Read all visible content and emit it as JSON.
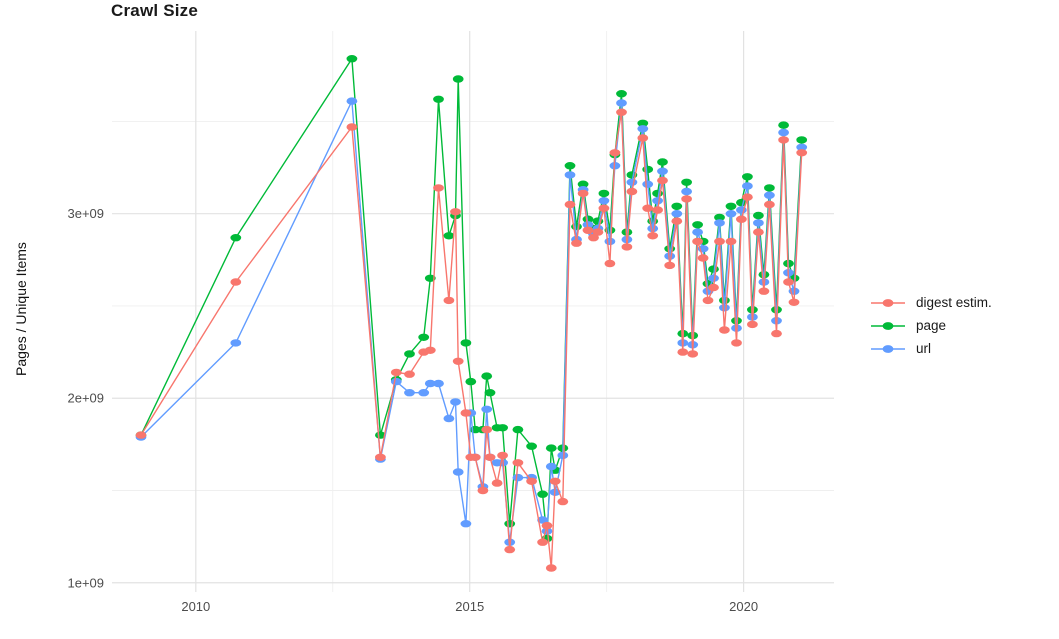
{
  "chart_data": {
    "type": "line",
    "title": "Crawl Size",
    "xlabel": "",
    "ylabel": "Pages / Unique Items",
    "legend_position": "right",
    "grid": true,
    "xlim": [
      2008.47,
      2021.65
    ],
    "ylim_e9": [
      0.95,
      3.99
    ],
    "y_scale_note": "series y values are in billions (1e9)",
    "x_ticks": {
      "values": [
        2010,
        2015,
        2020
      ],
      "labels": [
        "2010",
        "2015",
        "2020"
      ],
      "minor": [
        2012.5,
        2017.5
      ]
    },
    "y_ticks": {
      "values_e9": [
        1,
        2,
        3
      ],
      "labels": [
        "1e+09",
        "2e+09",
        "3e+09"
      ],
      "minor_e9": [
        1.5,
        2.5,
        3.5
      ]
    },
    "theme": {
      "background": "#FFFFFF",
      "grid_major_color": "#E2E2E2",
      "grid_minor_color": "#EFEFEF",
      "tick_label_color": "#4D4D4D",
      "text_color": "#1A1A1A"
    },
    "x_shared_years": [
      2009.0,
      2010.73,
      2012.85,
      2013.37,
      2013.66,
      2013.9,
      2014.16,
      2014.28,
      2014.43,
      2014.62,
      2014.74,
      2014.79,
      2014.93,
      2015.02,
      2015.1,
      2015.24,
      2015.31,
      2015.37,
      2015.5,
      2015.6,
      2015.73,
      2015.88,
      2016.13,
      2016.33,
      2016.41,
      2016.49,
      2016.56,
      2016.7,
      2016.83,
      2016.95,
      2017.07,
      2017.16,
      2017.26,
      2017.34,
      2017.45,
      2017.56,
      2017.65,
      2017.77,
      2017.87,
      2017.96,
      2018.16,
      2018.25,
      2018.34,
      2018.43,
      2018.52,
      2018.65,
      2018.78,
      2018.89,
      2018.96,
      2019.07,
      2019.16,
      2019.26,
      2019.35,
      2019.45,
      2019.56,
      2019.65,
      2019.77,
      2019.87,
      2019.96,
      2020.07,
      2020.16,
      2020.27,
      2020.37,
      2020.47,
      2020.6,
      2020.73,
      2020.82,
      2020.92,
      2021.06
    ],
    "series": [
      {
        "name": "digest estim.",
        "key": "digest-estim",
        "color": "#F8766D",
        "x": [
          2009.0,
          2010.73,
          2012.85,
          2013.37,
          2013.66,
          2013.9,
          2014.16,
          2014.28,
          2014.43,
          2014.62,
          2014.74,
          2014.79,
          2014.93,
          2015.02,
          2015.1,
          2015.24,
          2015.31,
          2015.37,
          2015.5,
          2015.6,
          2015.73,
          2015.88,
          2016.13,
          2016.33,
          2016.41,
          2016.49,
          2016.56,
          2016.7,
          2016.83,
          2016.95,
          2017.07,
          2017.16,
          2017.26,
          2017.34,
          2017.45,
          2017.56,
          2017.65,
          2017.77,
          2017.87,
          2017.96,
          2018.16,
          2018.25,
          2018.34,
          2018.43,
          2018.52,
          2018.65,
          2018.78,
          2018.89,
          2018.96,
          2019.07,
          2019.16,
          2019.26,
          2019.35,
          2019.45,
          2019.56,
          2019.65,
          2019.77,
          2019.87,
          2019.96,
          2020.07,
          2020.16,
          2020.27,
          2020.37,
          2020.47,
          2020.6,
          2020.73,
          2020.82,
          2020.92,
          2021.06
        ],
        "y": [
          1.8,
          2.63,
          3.47,
          1.68,
          2.14,
          2.13,
          2.25,
          2.26,
          3.14,
          2.53,
          3.01,
          2.2,
          1.92,
          1.68,
          1.68,
          1.5,
          1.83,
          1.68,
          1.54,
          1.69,
          1.18,
          1.65,
          1.55,
          1.22,
          1.31,
          1.08,
          1.55,
          1.44,
          3.05,
          2.84,
          3.11,
          2.91,
          2.87,
          2.9,
          3.03,
          2.73,
          3.33,
          3.55,
          2.82,
          3.12,
          3.41,
          3.03,
          2.88,
          3.02,
          3.18,
          2.72,
          2.96,
          2.25,
          3.08,
          2.24,
          2.85,
          2.76,
          2.53,
          2.6,
          2.85,
          2.37,
          2.85,
          2.3,
          2.97,
          3.09,
          2.4,
          2.9,
          2.58,
          3.05,
          2.35,
          3.4,
          2.63,
          2.52,
          3.33
        ]
      },
      {
        "name": "page",
        "key": "page",
        "color": "#00BA38",
        "x": [
          2009.0,
          2010.73,
          2012.85,
          2013.37,
          2013.66,
          2013.9,
          2014.16,
          2014.28,
          2014.43,
          2014.62,
          2014.74,
          2014.79,
          2014.93,
          2015.02,
          2015.1,
          2015.24,
          2015.31,
          2015.37,
          2015.5,
          2015.6,
          2015.73,
          2015.88,
          2016.13,
          2016.33,
          2016.41,
          2016.49,
          2016.56,
          2016.7,
          2016.83,
          2016.95,
          2017.07,
          2017.16,
          2017.26,
          2017.34,
          2017.45,
          2017.56,
          2017.65,
          2017.77,
          2017.87,
          2017.96,
          2018.16,
          2018.25,
          2018.34,
          2018.43,
          2018.52,
          2018.65,
          2018.78,
          2018.89,
          2018.96,
          2019.07,
          2019.16,
          2019.26,
          2019.35,
          2019.45,
          2019.56,
          2019.65,
          2019.77,
          2019.87,
          2019.96,
          2020.07,
          2020.16,
          2020.27,
          2020.37,
          2020.47,
          2020.6,
          2020.73,
          2020.82,
          2020.92,
          2021.06
        ],
        "y": [
          1.8,
          2.87,
          3.84,
          1.8,
          2.1,
          2.24,
          2.33,
          2.65,
          3.62,
          2.88,
          2.99,
          3.73,
          2.3,
          2.09,
          1.83,
          1.83,
          2.12,
          2.03,
          1.84,
          1.84,
          1.32,
          1.83,
          1.74,
          1.48,
          1.24,
          1.73,
          1.61,
          1.73,
          3.26,
          2.93,
          3.16,
          2.97,
          2.92,
          2.96,
          3.11,
          2.91,
          3.32,
          3.65,
          2.9,
          3.21,
          3.49,
          3.24,
          2.96,
          3.11,
          3.28,
          2.81,
          3.04,
          2.35,
          3.17,
          2.34,
          2.94,
          2.85,
          2.62,
          2.7,
          2.98,
          2.53,
          3.04,
          2.42,
          3.06,
          3.2,
          2.48,
          2.99,
          2.67,
          3.14,
          2.48,
          3.48,
          2.73,
          2.65,
          3.4
        ]
      },
      {
        "name": "url",
        "key": "url",
        "color": "#619CFF",
        "x": [
          2009.0,
          2010.73,
          2012.85,
          2013.37,
          2013.66,
          2013.9,
          2014.16,
          2014.28,
          2014.43,
          2014.62,
          2014.74,
          2014.79,
          2014.93,
          2015.02,
          2015.1,
          2015.24,
          2015.31,
          2015.37,
          2015.5,
          2015.6,
          2015.73,
          2015.88,
          2016.13,
          2016.33,
          2016.41,
          2016.49,
          2016.56,
          2016.7,
          2016.83,
          2016.95,
          2017.07,
          2017.16,
          2017.26,
          2017.34,
          2017.45,
          2017.56,
          2017.65,
          2017.77,
          2017.87,
          2017.96,
          2018.16,
          2018.25,
          2018.34,
          2018.43,
          2018.52,
          2018.65,
          2018.78,
          2018.89,
          2018.96,
          2019.07,
          2019.16,
          2019.26,
          2019.35,
          2019.45,
          2019.56,
          2019.65,
          2019.77,
          2019.87,
          2019.96,
          2020.07,
          2020.16,
          2020.27,
          2020.37,
          2020.47,
          2020.6,
          2020.73,
          2020.82,
          2020.92,
          2021.06
        ],
        "y": [
          1.79,
          2.3,
          3.61,
          1.67,
          2.09,
          2.03,
          2.03,
          2.08,
          2.08,
          1.89,
          1.98,
          1.6,
          1.32,
          1.92,
          1.68,
          1.52,
          1.94,
          1.68,
          1.65,
          1.65,
          1.22,
          1.57,
          1.57,
          1.34,
          1.28,
          1.63,
          1.49,
          1.69,
          3.21,
          2.86,
          3.13,
          2.94,
          2.89,
          2.92,
          3.07,
          2.85,
          3.26,
          3.6,
          2.86,
          3.17,
          3.46,
          3.16,
          2.92,
          3.07,
          3.23,
          2.77,
          3.0,
          2.3,
          3.12,
          2.29,
          2.9,
          2.81,
          2.58,
          2.65,
          2.95,
          2.49,
          3.0,
          2.38,
          3.02,
          3.15,
          2.44,
          2.95,
          2.63,
          3.1,
          2.42,
          3.44,
          2.68,
          2.58,
          3.36
        ]
      }
    ]
  }
}
